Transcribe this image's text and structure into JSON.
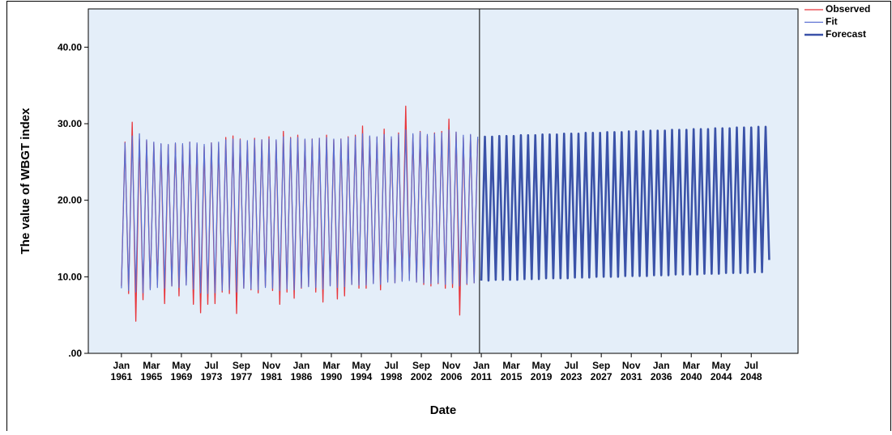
{
  "chart_data": {
    "type": "line",
    "xlabel": "Date",
    "ylabel": "The value of WBGT index",
    "xlim": [
      1956.4,
      2055.0
    ],
    "ylim": [
      0,
      45
    ],
    "legend": "right",
    "background": "#e4eef9",
    "yticks": [
      {
        "value": 0,
        "label": ".00"
      },
      {
        "value": 10,
        "label": "10.00"
      },
      {
        "value": 20,
        "label": "20.00"
      },
      {
        "value": 30,
        "label": "30.00"
      },
      {
        "value": 40,
        "label": "40.00"
      }
    ],
    "xticks": [
      {
        "value": 1961,
        "label": [
          "Jan",
          "1961"
        ]
      },
      {
        "value": 1965.1667,
        "label": [
          "Mar",
          "1965"
        ]
      },
      {
        "value": 1969.3333,
        "label": [
          "May",
          "1969"
        ]
      },
      {
        "value": 1973.5,
        "label": [
          "Jul",
          "1973"
        ]
      },
      {
        "value": 1977.6667,
        "label": [
          "Sep",
          "1977"
        ]
      },
      {
        "value": 1981.8333,
        "label": [
          "Nov",
          "1981"
        ]
      },
      {
        "value": 1986,
        "label": [
          "Jan",
          "1986"
        ]
      },
      {
        "value": 1990.1667,
        "label": [
          "Mar",
          "1990"
        ]
      },
      {
        "value": 1994.3333,
        "label": [
          "May",
          "1994"
        ]
      },
      {
        "value": 1998.5,
        "label": [
          "Jul",
          "1998"
        ]
      },
      {
        "value": 2002.6667,
        "label": [
          "Sep",
          "2002"
        ]
      },
      {
        "value": 2006.8333,
        "label": [
          "Nov",
          "2006"
        ]
      },
      {
        "value": 2011,
        "label": [
          "Jan",
          "2011"
        ]
      },
      {
        "value": 2015.1667,
        "label": [
          "Mar",
          "2015"
        ]
      },
      {
        "value": 2019.3333,
        "label": [
          "May",
          "2019"
        ]
      },
      {
        "value": 2023.5,
        "label": [
          "Jul",
          "2023"
        ]
      },
      {
        "value": 2027.6667,
        "label": [
          "Sep",
          "2027"
        ]
      },
      {
        "value": 2031.8333,
        "label": [
          "Nov",
          "2031"
        ]
      },
      {
        "value": 2036,
        "label": [
          "Jan",
          "2036"
        ]
      },
      {
        "value": 2040.1667,
        "label": [
          "Mar",
          "2040"
        ]
      },
      {
        "value": 2044.3333,
        "label": [
          "May",
          "2044"
        ]
      },
      {
        "value": 2048.5,
        "label": [
          "Jul",
          "2048"
        ]
      }
    ],
    "series": [
      {
        "name": "Observed",
        "color": "#e8353b",
        "line_width": 1.3,
        "x": [
          1961,
          1961.5,
          1962,
          1962.5,
          1963,
          1963.5,
          1964,
          1964.5,
          1965,
          1965.5,
          1966,
          1966.5,
          1967,
          1967.5,
          1968,
          1968.5,
          1969,
          1969.5,
          1970,
          1970.5,
          1971,
          1971.5,
          1972,
          1972.5,
          1973,
          1973.5,
          1974,
          1974.5,
          1975,
          1975.5,
          1976,
          1976.5,
          1977,
          1977.5,
          1978,
          1978.5,
          1979,
          1979.5,
          1980,
          1980.5,
          1981,
          1981.5,
          1982,
          1982.5,
          1983,
          1983.5,
          1984,
          1984.5,
          1985,
          1985.5,
          1986,
          1986.5,
          1987,
          1987.5,
          1988,
          1988.5,
          1989,
          1989.5,
          1990,
          1990.5,
          1991,
          1991.5,
          1992,
          1992.5,
          1993,
          1993.5,
          1994,
          1994.5,
          1995,
          1995.5,
          1996,
          1996.5,
          1997,
          1997.5,
          1998,
          1998.5,
          1999,
          1999.5,
          2000,
          2000.5,
          2001,
          2001.5,
          2002,
          2002.5,
          2003,
          2003.5,
          2004,
          2004.5,
          2005,
          2005.5,
          2006,
          2006.5,
          2007,
          2007.5,
          2008,
          2008.5,
          2009,
          2009.5,
          2010,
          2010.5
        ],
        "values": [
          8.8,
          27.6,
          7.8,
          30.2,
          4.2,
          28.0,
          7.0,
          27.8,
          8.5,
          27.5,
          9.0,
          27.3,
          6.5,
          27.2,
          8.8,
          27.4,
          7.5,
          27.2,
          9.0,
          27.6,
          6.4,
          27.3,
          5.3,
          27.0,
          6.4,
          27.5,
          6.5,
          27.4,
          8.0,
          28.2,
          7.8,
          28.4,
          5.2,
          28.0,
          8.5,
          27.6,
          8.3,
          28.1,
          7.9,
          27.9,
          8.8,
          28.3,
          8.2,
          27.8,
          6.4,
          29.0,
          8.0,
          28.2,
          7.2,
          28.5,
          8.5,
          27.9,
          8.8,
          28.0,
          8.0,
          28.1,
          6.7,
          28.5,
          8.9,
          27.9,
          7.1,
          28.0,
          7.5,
          28.3,
          9.0,
          28.5,
          8.5,
          29.7,
          8.5,
          28.3,
          9.2,
          28.2,
          8.3,
          29.3,
          9.6,
          28.0,
          9.2,
          28.8,
          9.5,
          32.3,
          9.8,
          28.5,
          9.3,
          29.0,
          9.0,
          28.4,
          8.8,
          28.8,
          9.1,
          29.0,
          8.5,
          30.6,
          8.6,
          28.9,
          5.0,
          28.2,
          9.0,
          28.5,
          9.2,
          28.0
        ]
      },
      {
        "name": "Fit",
        "color": "#5a6fd1",
        "line_width": 1.2,
        "x": [
          1961,
          1961.5,
          1962,
          1962.5,
          1963,
          1963.5,
          1964,
          1964.5,
          1965,
          1965.5,
          1966,
          1966.5,
          1967,
          1967.5,
          1968,
          1968.5,
          1969,
          1969.5,
          1970,
          1970.5,
          1971,
          1971.5,
          1972,
          1972.5,
          1973,
          1973.5,
          1974,
          1974.5,
          1975,
          1975.5,
          1976,
          1976.5,
          1977,
          1977.5,
          1978,
          1978.5,
          1979,
          1979.5,
          1980,
          1980.5,
          1981,
          1981.5,
          1982,
          1982.5,
          1983,
          1983.5,
          1984,
          1984.5,
          1985,
          1985.5,
          1986,
          1986.5,
          1987,
          1987.5,
          1988,
          1988.5,
          1989,
          1989.5,
          1990,
          1990.5,
          1991,
          1991.5,
          1992,
          1992.5,
          1993,
          1993.5,
          1994,
          1994.5,
          1995,
          1995.5,
          1996,
          1996.5,
          1997,
          1997.5,
          1998,
          1998.5,
          1999,
          1999.5,
          2000,
          2000.5,
          2001,
          2001.5,
          2002,
          2002.5,
          2003,
          2003.5,
          2004,
          2004.5,
          2005,
          2005.5,
          2006,
          2006.5,
          2007,
          2007.5,
          2008,
          2008.5,
          2009,
          2009.5,
          2010,
          2010.5
        ],
        "values": [
          8.5,
          27.5,
          8.2,
          28.4,
          8.0,
          28.7,
          7.9,
          27.9,
          8.3,
          27.6,
          8.6,
          27.4,
          8.5,
          27.3,
          8.8,
          27.5,
          8.6,
          27.4,
          8.9,
          27.6,
          8.4,
          27.5,
          7.9,
          27.3,
          7.8,
          27.5,
          7.9,
          27.6,
          8.2,
          27.9,
          8.3,
          28.0,
          8.0,
          27.9,
          8.5,
          27.8,
          8.4,
          27.9,
          8.3,
          27.9,
          8.6,
          28.0,
          8.5,
          27.9,
          8.2,
          28.3,
          8.4,
          28.1,
          8.3,
          28.2,
          8.6,
          28.0,
          8.7,
          28.0,
          8.6,
          28.1,
          8.4,
          28.2,
          8.8,
          28.0,
          8.6,
          28.0,
          8.7,
          28.2,
          9.0,
          28.3,
          8.9,
          28.7,
          8.9,
          28.4,
          9.1,
          28.3,
          9.0,
          28.6,
          9.3,
          28.3,
          9.2,
          28.6,
          9.4,
          29.2,
          9.5,
          28.7,
          9.3,
          28.9,
          9.2,
          28.6,
          9.1,
          28.7,
          9.2,
          28.8,
          9.0,
          29.2,
          9.1,
          28.9,
          8.8,
          28.5,
          9.1,
          28.6,
          9.2,
          28.3
        ]
      },
      {
        "name": "Forecast",
        "color": "#3a52a8",
        "line_width": 2.6,
        "x": [
          2011,
          2011.5,
          2012,
          2012.5,
          2013,
          2013.5,
          2014,
          2014.5,
          2015,
          2015.5,
          2016,
          2016.5,
          2017,
          2017.5,
          2018,
          2018.5,
          2019,
          2019.5,
          2020,
          2020.5,
          2021,
          2021.5,
          2022,
          2022.5,
          2023,
          2023.5,
          2024,
          2024.5,
          2025,
          2025.5,
          2026,
          2026.5,
          2027,
          2027.5,
          2028,
          2028.5,
          2029,
          2029.5,
          2030,
          2030.5,
          2031,
          2031.5,
          2032,
          2032.5,
          2033,
          2033.5,
          2034,
          2034.5,
          2035,
          2035.5,
          2036,
          2036.5,
          2037,
          2037.5,
          2038,
          2038.5,
          2039,
          2039.5,
          2040,
          2040.5,
          2041,
          2041.5,
          2042,
          2042.5,
          2043,
          2043.5,
          2044,
          2044.5,
          2045,
          2045.5,
          2046,
          2046.5,
          2047,
          2047.5,
          2048,
          2048.5,
          2049,
          2049.5,
          2050,
          2050.5,
          2051
        ],
        "values": [
          9.5,
          28.3,
          9.5,
          28.3,
          9.6,
          28.4,
          9.6,
          28.4,
          9.6,
          28.4,
          9.6,
          28.5,
          9.7,
          28.5,
          9.7,
          28.5,
          9.7,
          28.6,
          9.8,
          28.6,
          9.8,
          28.6,
          9.8,
          28.7,
          9.8,
          28.7,
          9.9,
          28.7,
          9.9,
          28.8,
          9.9,
          28.8,
          10.0,
          28.8,
          10.0,
          28.9,
          10.0,
          28.9,
          10.0,
          28.9,
          10.1,
          29.0,
          10.1,
          29.0,
          10.1,
          29.0,
          10.1,
          29.1,
          10.2,
          29.1,
          10.2,
          29.1,
          10.2,
          29.2,
          10.3,
          29.2,
          10.3,
          29.2,
          10.3,
          29.3,
          10.3,
          29.3,
          10.4,
          29.3,
          10.4,
          29.4,
          10.4,
          29.4,
          10.5,
          29.4,
          10.5,
          29.5,
          10.5,
          29.5,
          10.5,
          29.5,
          10.6,
          29.6,
          10.6,
          29.6,
          12.2
        ]
      }
    ]
  }
}
